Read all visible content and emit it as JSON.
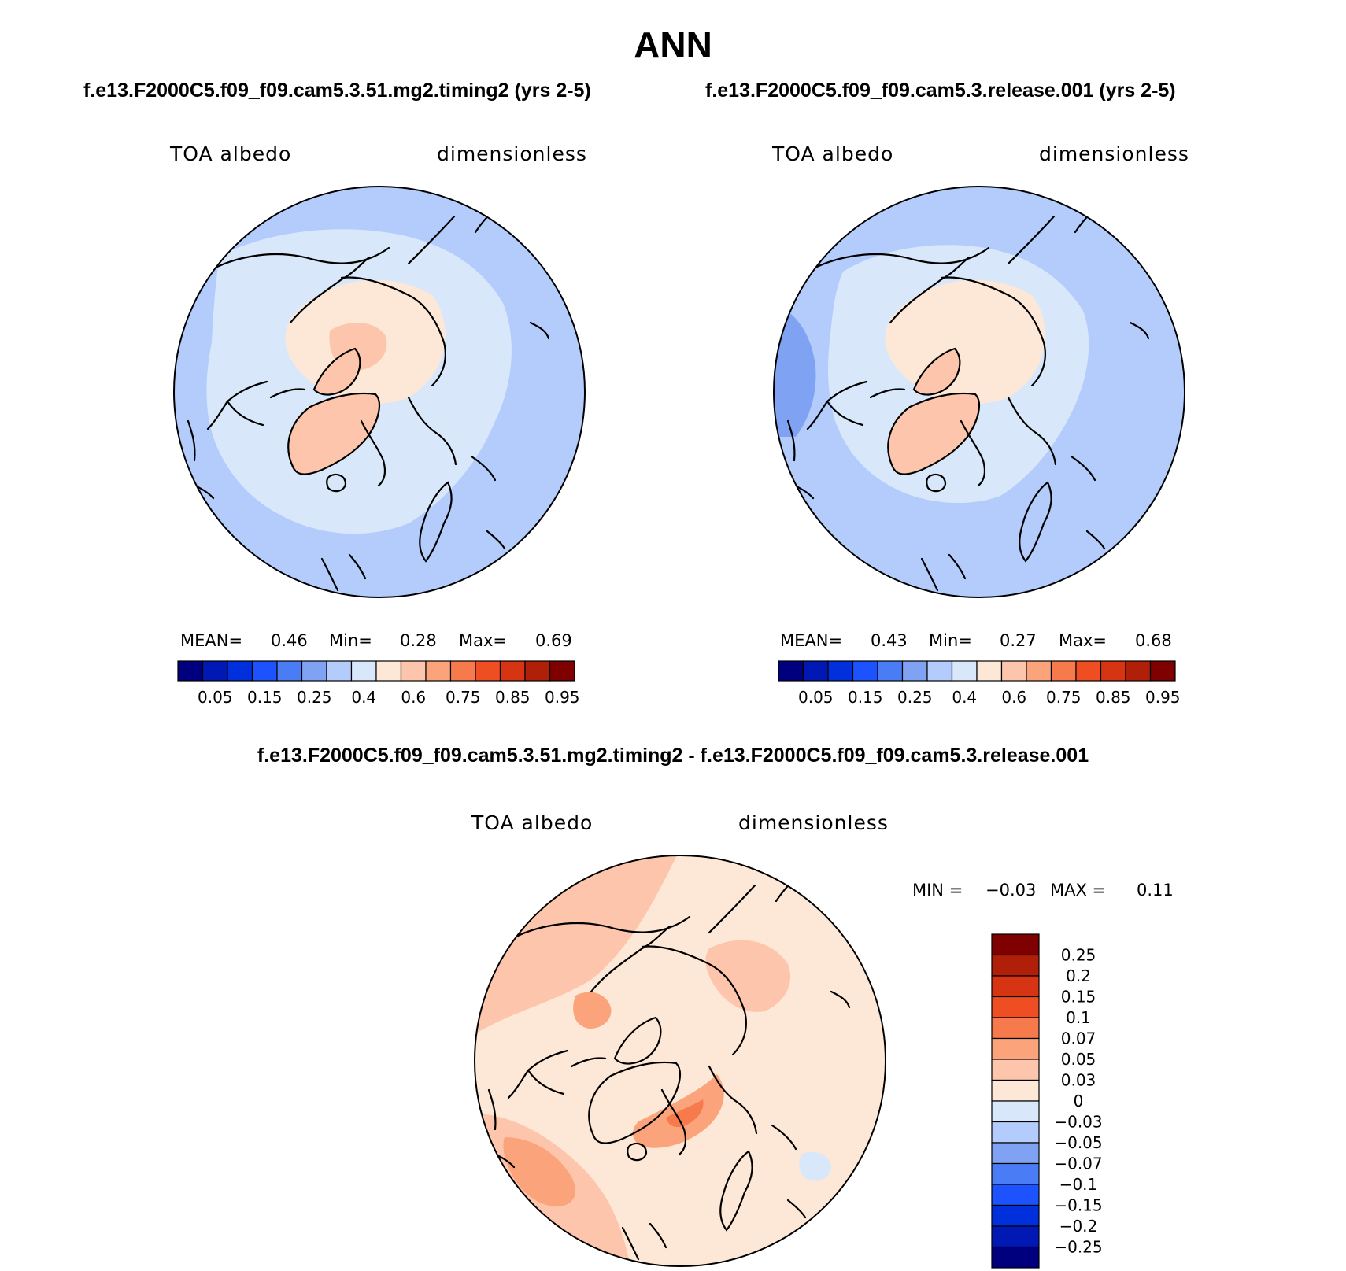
{
  "figure": {
    "title": "ANN"
  },
  "panels": [
    {
      "case_title": "f.e13.F2000C5.f09_f09.cam5.3.51.mg2.timing2 (yrs 2-5)",
      "variable": "TOA albedo",
      "units": "dimensionless",
      "stats": {
        "mean_label": "MEAN=",
        "mean": "0.46",
        "min_label": "Min=",
        "min": "0.28",
        "max_label": "Max=",
        "max": "0.69"
      }
    },
    {
      "case_title": "f.e13.F2000C5.f09_f09.cam5.3.release.001 (yrs 2-5)",
      "variable": "TOA albedo",
      "units": "dimensionless",
      "stats": {
        "mean_label": "MEAN=",
        "mean": "0.43",
        "min_label": "Min=",
        "min": "0.27",
        "max_label": "Max=",
        "max": "0.68"
      }
    }
  ],
  "diff_panel": {
    "title": "f.e13.F2000C5.f09_f09.cam5.3.51.mg2.timing2 - f.e13.F2000C5.f09_f09.cam5.3.release.001",
    "variable": "TOA albedo",
    "units": "dimensionless",
    "stats": {
      "min_label": "MIN =",
      "min": "−0.03",
      "max_label": "MAX =",
      "max": "0.11"
    }
  },
  "colorbar_abs": {
    "colors": [
      "#00007f",
      "#0018b4",
      "#0030dc",
      "#1d52ff",
      "#4a7cf5",
      "#7fa3f2",
      "#b3ccfb",
      "#d8e8fa",
      "#fde8d7",
      "#fdc6ac",
      "#fba47c",
      "#f77a4d",
      "#ef4e23",
      "#d63413",
      "#b01f07",
      "#7f0000"
    ],
    "tick_labels": [
      "0.05",
      "0.15",
      "0.25",
      "0.4",
      "0.6",
      "0.75",
      "0.85",
      "0.95"
    ]
  },
  "colorbar_diff": {
    "colors": [
      "#7f0000",
      "#b01f07",
      "#d63413",
      "#ef4e23",
      "#f77a4d",
      "#fba47c",
      "#fdc6ac",
      "#fde8d7",
      "#d8e8fa",
      "#b3ccfb",
      "#7fa3f2",
      "#4a7cf5",
      "#1d52ff",
      "#0030dc",
      "#0018b4",
      "#00007f"
    ],
    "tick_labels": [
      "0.25",
      "0.2",
      "0.15",
      "0.1",
      "0.07",
      "0.05",
      "0.03",
      "0",
      "−0.03",
      "−0.05",
      "−0.07",
      "−0.1",
      "−0.15",
      "−0.2",
      "−0.25"
    ]
  },
  "map_colors": {
    "ocean_low": "#b3ccfb",
    "ocean_lighter": "#d8e8fa",
    "ocean_darker": "#7fa3f2",
    "ice_pale": "#fde8d7",
    "ice_peach": "#fdc6ac",
    "diff_pale": "#fde8d7",
    "diff_peach": "#fdc6ac",
    "diff_orange": "#fba47c",
    "diff_strong": "#f77a4d",
    "diff_neg": "#d8e8fa",
    "coast": "#000000"
  }
}
